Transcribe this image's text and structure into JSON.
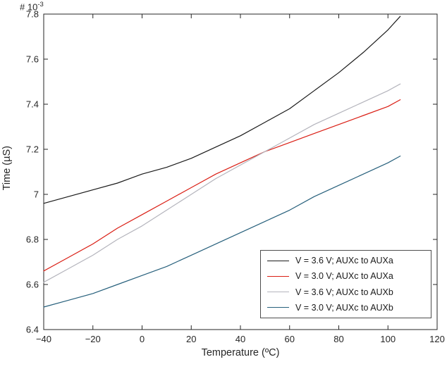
{
  "chart_data": {
    "type": "line",
    "title": "",
    "xlabel": "Temperature (ºC)",
    "ylabel": "Time (µS)",
    "exponent_label": {
      "prefix": "# 10",
      "exponent": "-3"
    },
    "y_scale_note": "y-axis values are ×10⁻³ µS",
    "xlim": [
      -40,
      120
    ],
    "ylim": [
      6.4,
      7.8
    ],
    "xticks": [
      -40,
      -20,
      0,
      20,
      40,
      60,
      80,
      100,
      120
    ],
    "xtick_labels": [
      "−40",
      "−20",
      "0",
      "20",
      "40",
      "60",
      "80",
      "100",
      "120"
    ],
    "yticks": [
      6.4,
      6.6,
      6.8,
      7.0,
      7.2,
      7.4,
      7.6,
      7.8
    ],
    "ytick_labels": [
      "6.4",
      "6.6",
      "6.8",
      "7",
      "7.2",
      "7.4",
      "7.6",
      "7.8"
    ],
    "grid": false,
    "box": true,
    "axis_color": "#262626",
    "tick_label_color": "#262626",
    "legend_position": "lower right",
    "x": [
      -40,
      -30,
      -20,
      -10,
      0,
      10,
      20,
      30,
      40,
      50,
      60,
      70,
      80,
      90,
      100,
      105
    ],
    "series": [
      {
        "name": "V = 3.6 V; AUXc to AUXa",
        "color": "#1a1a1a",
        "values": [
          6.96,
          6.99,
          7.02,
          7.05,
          7.09,
          7.12,
          7.16,
          7.21,
          7.26,
          7.32,
          7.38,
          7.46,
          7.54,
          7.63,
          7.73,
          7.79
        ]
      },
      {
        "name": "V = 3.0 V; AUXc to AUXa",
        "color": "#da1e14",
        "values": [
          6.66,
          6.72,
          6.78,
          6.85,
          6.91,
          6.97,
          7.03,
          7.09,
          7.14,
          7.19,
          7.23,
          7.27,
          7.31,
          7.35,
          7.39,
          7.42
        ]
      },
      {
        "name": "V = 3.6 V; AUXc to AUXb",
        "color": "#b4b4bc",
        "values": [
          6.61,
          6.67,
          6.73,
          6.8,
          6.86,
          6.93,
          7.0,
          7.07,
          7.13,
          7.19,
          7.25,
          7.31,
          7.36,
          7.41,
          7.46,
          7.49
        ]
      },
      {
        "name": "V = 3.0 V; AUXc to AUXb",
        "color": "#27607c",
        "values": [
          6.5,
          6.53,
          6.56,
          6.6,
          6.64,
          6.68,
          6.73,
          6.78,
          6.83,
          6.88,
          6.93,
          6.99,
          7.04,
          7.09,
          7.14,
          7.17
        ]
      }
    ]
  }
}
